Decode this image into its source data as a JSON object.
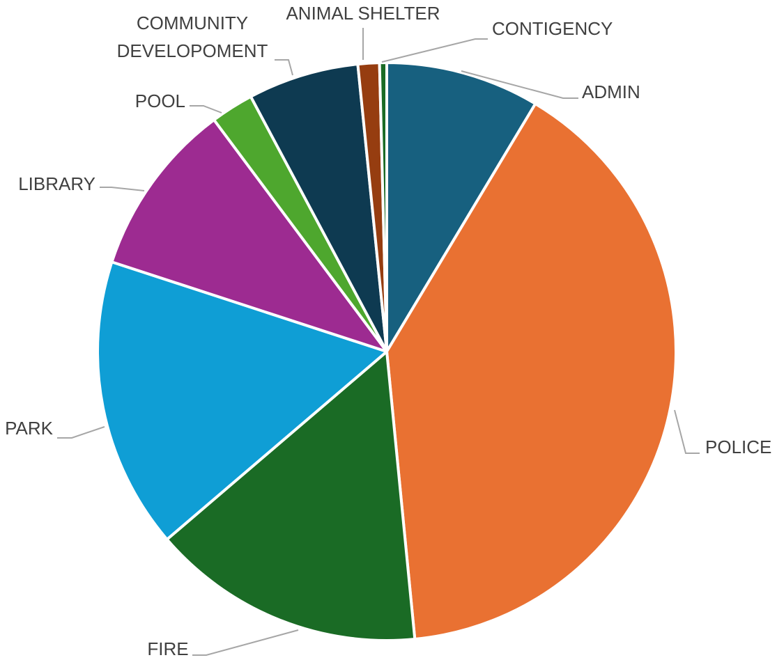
{
  "chart_data": {
    "type": "pie",
    "title": "",
    "legend": "none",
    "start_angle_deg": 0,
    "direction": "clockwise",
    "categories": [
      "ADMIN",
      "POLICE",
      "FIRE",
      "PARK",
      "LIBRARY",
      "POOL",
      "COMMUNITY DEVELOPOMENT",
      "ANIMAL SHELTER",
      "CONTIGENCY"
    ],
    "label_lines": [
      [
        "ADMIN"
      ],
      [
        "POLICE"
      ],
      [
        "FIRE"
      ],
      [
        "PARK"
      ],
      [
        "LIBRARY"
      ],
      [
        "POOL"
      ],
      [
        "COMMUNITY",
        "DEVELOPOMENT"
      ],
      [
        "ANIMAL SHELTER"
      ],
      [
        "CONTIGENCY"
      ]
    ],
    "values": [
      8.6,
      39.9,
      15.3,
      16.3,
      9.8,
      2.4,
      6.2,
      1.2,
      0.4
    ],
    "colors": [
      "#17607f",
      "#e97132",
      "#1a6b25",
      "#0f9ed5",
      "#9d2b91",
      "#4ea72e",
      "#0e3a51",
      "#963d10",
      "#1a6b25"
    ]
  }
}
